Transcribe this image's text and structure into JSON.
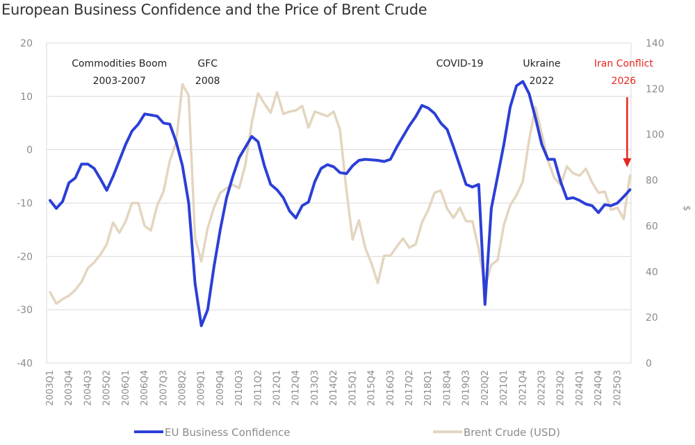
{
  "chart_data": {
    "type": "line",
    "title": "European Business Confidence and the Price of Brent Crude",
    "xlabel": "",
    "ylabel_left": "",
    "ylabel_right": "$",
    "ylim_left": [
      -40,
      20
    ],
    "ylim_right": [
      0,
      140
    ],
    "yticks_left": [
      "20",
      "10",
      "0",
      "-10",
      "-20",
      "-30",
      "-40"
    ],
    "yticks_left_values": [
      20,
      10,
      0,
      -10,
      -20,
      -30,
      -40
    ],
    "yticks_right": [
      "140",
      "120",
      "100",
      "80",
      "60",
      "40",
      "20",
      "0"
    ],
    "yticks_right_values": [
      140,
      120,
      100,
      80,
      60,
      40,
      20,
      0
    ],
    "grid": true,
    "legend_position": "bottom",
    "x": [
      "2003Q1",
      "2003Q2",
      "2003Q3",
      "2003Q4",
      "2004Q1",
      "2004Q2",
      "2004Q3",
      "2004Q4",
      "2005Q1",
      "2005Q2",
      "2005Q3",
      "2005Q4",
      "2006Q1",
      "2006Q2",
      "2006Q3",
      "2006Q4",
      "2007Q1",
      "2007Q2",
      "2007Q3",
      "2007Q4",
      "2008Q1",
      "2008Q2",
      "2008Q3",
      "2008Q4",
      "2009Q1",
      "2009Q2",
      "2009Q3",
      "2009Q4",
      "2010Q1",
      "2010Q2",
      "2010Q3",
      "2010Q4",
      "2011Q1",
      "2011Q2",
      "2011Q3",
      "2011Q4",
      "2012Q1",
      "2012Q2",
      "2012Q3",
      "2012Q4",
      "2013Q1",
      "2013Q2",
      "2013Q3",
      "2013Q4",
      "2014Q1",
      "2014Q2",
      "2014Q3",
      "2014Q4",
      "2015Q1",
      "2015Q2",
      "2015Q3",
      "2015Q4",
      "2016Q1",
      "2016Q2",
      "2016Q3",
      "2016Q4",
      "2017Q1",
      "2017Q2",
      "2017Q3",
      "2017Q4",
      "2018Q1",
      "2018Q2",
      "2018Q3",
      "2018Q4",
      "2019Q1",
      "2019Q2",
      "2019Q3",
      "2019Q4",
      "2020Q1",
      "2020Q2",
      "2020Q3",
      "2020Q4",
      "2021Q1",
      "2021Q2",
      "2021Q3",
      "2021Q4",
      "2022Q1",
      "2022Q2",
      "2022Q3",
      "2022Q4",
      "2023Q1",
      "2023Q2",
      "2023Q3",
      "2023Q4",
      "2024Q1",
      "2024Q2",
      "2024Q3",
      "2024Q4",
      "2025Q1",
      "2025Q2",
      "2025Q3",
      "2025Q4",
      "2026Q1"
    ],
    "x_tick_labels": [
      "2003Q1",
      "2003Q4",
      "2004Q3",
      "2005Q2",
      "2006Q1",
      "2006Q4",
      "2007Q3",
      "2008Q2",
      "2009Q1",
      "2009Q4",
      "2010Q3",
      "2011Q2",
      "2012Q1",
      "2012Q4",
      "2013Q3",
      "2014Q2",
      "2015Q1",
      "2015Q4",
      "2016Q3",
      "2017Q2",
      "2018Q1",
      "2018Q4",
      "2019Q3",
      "2020Q2",
      "2021Q1",
      "2021Q4",
      "2022Q3",
      "2023Q2",
      "2024Q1",
      "2024Q4",
      "2025Q3"
    ],
    "series": [
      {
        "name": "EU Business Confidence",
        "axis": "left",
        "color": "#2b3fd6",
        "values": [
          -9.5,
          -11,
          -9.7,
          -6.2,
          -5.3,
          -2.7,
          -2.7,
          -3.5,
          -5.5,
          -7.6,
          -5,
          -2,
          1,
          3.5,
          4.8,
          6.7,
          6.5,
          6.3,
          5,
          4.8,
          1.5,
          -3,
          -10,
          -25,
          -33,
          -30,
          -22,
          -15,
          -9,
          -5,
          -1.5,
          0.5,
          2.5,
          1.5,
          -3,
          -6.5,
          -7.5,
          -9,
          -11.5,
          -12.8,
          -10.5,
          -9.8,
          -6,
          -3.5,
          -2.8,
          -3.2,
          -4.3,
          -4.5,
          -3,
          -2,
          -1.8,
          -1.9,
          -2,
          -2.2,
          -1.8,
          0.5,
          2.5,
          4.5,
          6.2,
          8.3,
          7.8,
          6.8,
          5,
          3.8,
          0.5,
          -3,
          -6.5,
          -7,
          -6.5,
          -29,
          -11,
          -5,
          1,
          8,
          12,
          12.8,
          10.5,
          6,
          1,
          -1.8,
          -1.8,
          -6,
          -9.2,
          -9,
          -9.5,
          -10.2,
          -10.5,
          -11.8,
          -10.3,
          -10.5,
          -10,
          -8.8,
          -7.5
        ]
      },
      {
        "name": "Brent Crude (USD)",
        "axis": "right",
        "color": "#e3d5bf",
        "values": [
          31,
          26,
          28,
          29.5,
          32,
          35.5,
          41.5,
          44,
          47.5,
          52,
          61.5,
          57,
          62,
          70,
          70,
          60,
          58,
          69,
          75,
          88.5,
          96.5,
          122,
          117,
          55,
          44.5,
          59,
          68,
          74.5,
          76.5,
          78,
          76.5,
          87,
          105,
          118,
          113.5,
          109.5,
          118.5,
          109,
          110,
          110.5,
          112.5,
          103,
          110,
          109,
          108,
          110,
          102,
          76,
          54,
          62.5,
          50.5,
          43.5,
          35,
          47,
          47,
          51,
          54.5,
          50.5,
          52,
          61.5,
          67,
          74.5,
          75.5,
          67.5,
          63.5,
          68,
          62,
          62,
          50,
          33,
          43,
          45,
          60.5,
          69,
          73.5,
          79.5,
          97.5,
          112,
          100.5,
          88.5,
          81,
          78,
          86,
          83,
          82,
          85,
          79,
          74.5,
          75,
          67,
          68,
          63,
          82
        ]
      }
    ],
    "annotations": [
      {
        "lines": [
          "Commodities Boom",
          "2003-2007"
        ],
        "color": "#222222",
        "x": "2005Q4"
      },
      {
        "lines": [
          "GFC",
          "2008"
        ],
        "color": "#222222",
        "x": "2009Q2"
      },
      {
        "lines": [
          "COVID-19"
        ],
        "color": "#222222",
        "x": "2019Q2"
      },
      {
        "lines": [
          "Ukraine",
          "2022"
        ],
        "color": "#222222",
        "x": "2022Q3"
      },
      {
        "lines": [
          "Iran Conflict",
          "2026"
        ],
        "color": "#e8231b",
        "x": "2025Q4",
        "arrow": true
      }
    ]
  },
  "legend": [
    {
      "label": "EU Business Confidence",
      "color": "#2b3fd6"
    },
    {
      "label": "Brent Crude (USD)",
      "color": "#e3d5bf"
    }
  ]
}
